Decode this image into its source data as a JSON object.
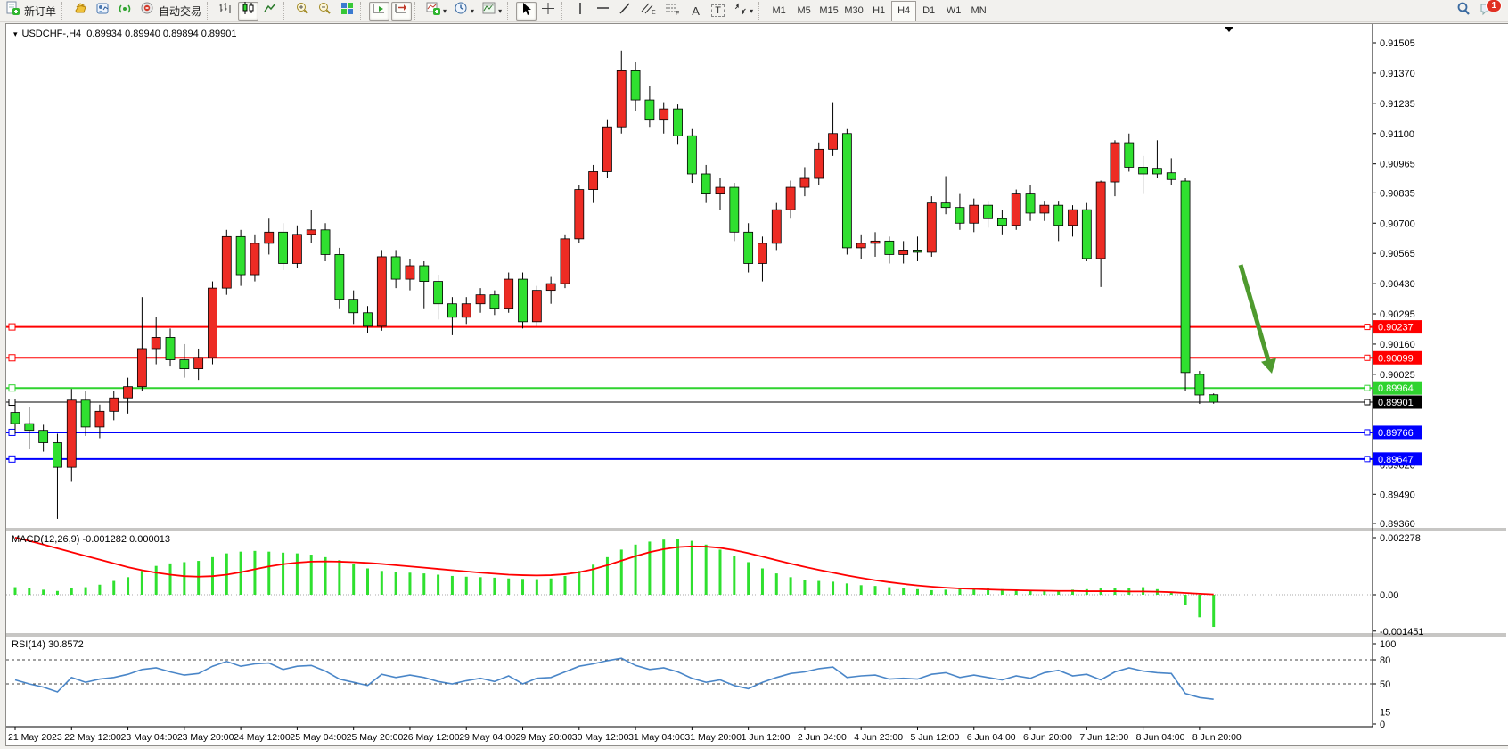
{
  "toolbar": {
    "new_order_label": "新订单",
    "auto_trading_label": "自动交易",
    "text_tool_label": "A",
    "label_tool_label": "T",
    "notification_count": "1",
    "timeframes": [
      "M1",
      "M5",
      "M15",
      "M30",
      "H1",
      "H4",
      "D1",
      "W1",
      "MN"
    ],
    "active_timeframe": "H4"
  },
  "chart": {
    "title": "USDCHF-,H4",
    "ohlc_display": "0.89934 0.89940 0.89894 0.89901",
    "macd_label": "MACD(12,26,9) -0.001282 0.000013",
    "rsi_label": "RSI(14) 30.8572",
    "accent_colors": {
      "bull_candle": "#ed2c24",
      "bear_candle": "#30e030",
      "resistance_line": "#ff0000",
      "support_line_green": "#2fd32f",
      "support_line_blue": "#0000ff",
      "current_price_line": "#000000",
      "macd_histogram": "#2fe02f",
      "macd_signal": "#ff0000",
      "rsi_line": "#4a86c8",
      "annotation_arrow": "#4e9a2e"
    }
  },
  "chart_data": {
    "type": "candlestick",
    "symbol": "USDCHF-",
    "timeframe": "H4",
    "current_price": 0.89901,
    "price_ticks": [
      "0.91505",
      "0.91370",
      "0.91235",
      "0.91100",
      "0.90965",
      "0.90835",
      "0.90700",
      "0.90565",
      "0.90430",
      "0.90295",
      "0.90160",
      "0.90025",
      "0.89890",
      "0.89755",
      "0.89620",
      "0.89490",
      "0.89360"
    ],
    "x_labels": [
      "21 May 2023",
      "22 May 12:00",
      "23 May 04:00",
      "23 May 20:00",
      "24 May 12:00",
      "25 May 04:00",
      "25 May 20:00",
      "26 May 12:00",
      "29 May 04:00",
      "29 May 20:00",
      "30 May 12:00",
      "31 May 04:00",
      "31 May 20:00",
      "1 Jun 12:00",
      "2 Jun 04:00",
      "4 Jun 23:00",
      "5 Jun 12:00",
      "6 Jun 04:00",
      "6 Jun 20:00",
      "7 Jun 12:00",
      "8 Jun 04:00",
      "8 Jun 20:00"
    ],
    "hlines": [
      {
        "price": 0.90237,
        "label": "0.90237",
        "color": "#ff0000",
        "width": 2
      },
      {
        "price": 0.90099,
        "label": "0.90099",
        "color": "#ff0000",
        "width": 2
      },
      {
        "price": 0.89964,
        "label": "0.89964",
        "color": "#2fd32f",
        "width": 2
      },
      {
        "price": 0.89901,
        "label": "0.89901",
        "color": "#000000",
        "width": 1
      },
      {
        "price": 0.89766,
        "label": "0.89766",
        "color": "#0000ff",
        "width": 2
      },
      {
        "price": 0.89647,
        "label": "0.89647",
        "color": "#0000ff",
        "width": 2
      }
    ],
    "candles": [
      [
        0.89855,
        0.8989,
        0.8976,
        0.89805
      ],
      [
        0.89805,
        0.8988,
        0.8969,
        0.89775
      ],
      [
        0.89775,
        0.898,
        0.8968,
        0.8972
      ],
      [
        0.8972,
        0.8976,
        0.8938,
        0.8961
      ],
      [
        0.8961,
        0.8996,
        0.89545,
        0.8991
      ],
      [
        0.8991,
        0.8995,
        0.8975,
        0.8979
      ],
      [
        0.8979,
        0.8989,
        0.8974,
        0.8986
      ],
      [
        0.8986,
        0.8995,
        0.8982,
        0.8992
      ],
      [
        0.8992,
        0.9001,
        0.8985,
        0.8997
      ],
      [
        0.8997,
        0.9037,
        0.8995,
        0.9014
      ],
      [
        0.9014,
        0.9028,
        0.9007,
        0.9019
      ],
      [
        0.9019,
        0.9023,
        0.9006,
        0.9009
      ],
      [
        0.9009,
        0.9016,
        0.9001,
        0.9005
      ],
      [
        0.9005,
        0.9014,
        0.9,
        0.901
      ],
      [
        0.901,
        0.9044,
        0.9007,
        0.9041
      ],
      [
        0.9041,
        0.9067,
        0.9038,
        0.9064
      ],
      [
        0.9064,
        0.9067,
        0.9042,
        0.9047
      ],
      [
        0.9047,
        0.9065,
        0.9044,
        0.9061
      ],
      [
        0.9061,
        0.9072,
        0.9056,
        0.9066
      ],
      [
        0.9066,
        0.907,
        0.9049,
        0.9052
      ],
      [
        0.9052,
        0.9069,
        0.905,
        0.9065
      ],
      [
        0.9065,
        0.9076,
        0.9061,
        0.9067
      ],
      [
        0.9067,
        0.907,
        0.9053,
        0.9056
      ],
      [
        0.9056,
        0.9059,
        0.9032,
        0.9036
      ],
      [
        0.9036,
        0.904,
        0.9025,
        0.903
      ],
      [
        0.903,
        0.9033,
        0.9021,
        0.9024
      ],
      [
        0.9024,
        0.9058,
        0.9022,
        0.9055
      ],
      [
        0.9055,
        0.9058,
        0.9041,
        0.9045
      ],
      [
        0.9045,
        0.9054,
        0.904,
        0.9051
      ],
      [
        0.9051,
        0.9053,
        0.9032,
        0.9044
      ],
      [
        0.9044,
        0.9047,
        0.9027,
        0.9034
      ],
      [
        0.9034,
        0.9037,
        0.902,
        0.9028
      ],
      [
        0.9028,
        0.9037,
        0.9025,
        0.9034
      ],
      [
        0.9034,
        0.9041,
        0.903,
        0.9038
      ],
      [
        0.9038,
        0.904,
        0.9029,
        0.9032
      ],
      [
        0.9032,
        0.9048,
        0.903,
        0.9045
      ],
      [
        0.9045,
        0.9048,
        0.9023,
        0.9026
      ],
      [
        0.9026,
        0.9042,
        0.9024,
        0.904
      ],
      [
        0.904,
        0.9046,
        0.9034,
        0.9043
      ],
      [
        0.9043,
        0.9065,
        0.9041,
        0.9063
      ],
      [
        0.9063,
        0.9087,
        0.9061,
        0.9085
      ],
      [
        0.9085,
        0.9096,
        0.9079,
        0.9093
      ],
      [
        0.9093,
        0.9116,
        0.909,
        0.9113
      ],
      [
        0.9113,
        0.9147,
        0.911,
        0.9138
      ],
      [
        0.9138,
        0.9142,
        0.912,
        0.9125
      ],
      [
        0.9125,
        0.9131,
        0.9113,
        0.9116
      ],
      [
        0.9116,
        0.9124,
        0.911,
        0.9121
      ],
      [
        0.9121,
        0.9123,
        0.9105,
        0.9109
      ],
      [
        0.9109,
        0.9112,
        0.9088,
        0.9092
      ],
      [
        0.9092,
        0.9096,
        0.9079,
        0.9083
      ],
      [
        0.9083,
        0.909,
        0.9076,
        0.9086
      ],
      [
        0.9086,
        0.9088,
        0.9062,
        0.9066
      ],
      [
        0.9066,
        0.907,
        0.9048,
        0.9052
      ],
      [
        0.9052,
        0.9064,
        0.9044,
        0.9061
      ],
      [
        0.9061,
        0.9079,
        0.9058,
        0.9076
      ],
      [
        0.9076,
        0.9089,
        0.9072,
        0.9086
      ],
      [
        0.9086,
        0.9095,
        0.9082,
        0.909
      ],
      [
        0.909,
        0.9106,
        0.9087,
        0.9103
      ],
      [
        0.9103,
        0.9124,
        0.91,
        0.911
      ],
      [
        0.911,
        0.9112,
        0.9056,
        0.9059
      ],
      [
        0.9059,
        0.9065,
        0.9054,
        0.9061
      ],
      [
        0.9061,
        0.9066,
        0.9055,
        0.9062
      ],
      [
        0.9062,
        0.9064,
        0.9052,
        0.9056
      ],
      [
        0.9056,
        0.9062,
        0.9052,
        0.9058
      ],
      [
        0.9058,
        0.9064,
        0.9053,
        0.9057
      ],
      [
        0.9057,
        0.9082,
        0.9055,
        0.9079
      ],
      [
        0.9079,
        0.9091,
        0.9074,
        0.9077
      ],
      [
        0.9077,
        0.9083,
        0.9067,
        0.907
      ],
      [
        0.907,
        0.9081,
        0.9066,
        0.9078
      ],
      [
        0.9078,
        0.908,
        0.9068,
        0.9072
      ],
      [
        0.9072,
        0.9076,
        0.9065,
        0.9069
      ],
      [
        0.9069,
        0.9085,
        0.9067,
        0.9083
      ],
      [
        0.9083,
        0.9087,
        0.9071,
        0.90745
      ],
      [
        0.90745,
        0.908,
        0.9071,
        0.9078
      ],
      [
        0.9078,
        0.908,
        0.9062,
        0.9069
      ],
      [
        0.9069,
        0.9078,
        0.9064,
        0.9076
      ],
      [
        0.9076,
        0.9079,
        0.9053,
        0.90542
      ],
      [
        0.90542,
        0.9089,
        0.90415,
        0.90884
      ],
      [
        0.90884,
        0.9107,
        0.9082,
        0.91059
      ],
      [
        0.91059,
        0.911,
        0.9093,
        0.9095
      ],
      [
        0.9095,
        0.91,
        0.9083,
        0.9092
      ],
      [
        0.90945,
        0.9107,
        0.909,
        0.9092
      ],
      [
        0.90925,
        0.9099,
        0.9087,
        0.90895
      ],
      [
        0.90888,
        0.909,
        0.8995,
        0.90033
      ],
      [
        0.90025,
        0.9004,
        0.89893,
        0.89933
      ],
      [
        0.89934,
        0.8994,
        0.89894,
        0.89901
      ]
    ],
    "macd": {
      "ticks": [
        {
          "value": 0.002278,
          "label": "0.002278"
        },
        {
          "value": 0,
          "label": "0.00"
        },
        {
          "value": -0.001451,
          "label": "-0.001451"
        }
      ],
      "histogram": [
        0.0003,
        0.00025,
        0.0002,
        0.00015,
        0.00025,
        0.0003,
        0.0004,
        0.00055,
        0.0007,
        0.00095,
        0.00115,
        0.00125,
        0.0013,
        0.00135,
        0.0015,
        0.00165,
        0.00172,
        0.00175,
        0.00172,
        0.00168,
        0.00165,
        0.0016,
        0.0015,
        0.00138,
        0.00122,
        0.00105,
        0.00095,
        0.0009,
        0.00088,
        0.00085,
        0.0008,
        0.00075,
        0.00072,
        0.0007,
        0.00068,
        0.00065,
        0.00063,
        0.00062,
        0.00065,
        0.00075,
        0.00095,
        0.0012,
        0.0015,
        0.0018,
        0.002,
        0.00212,
        0.0022,
        0.00222,
        0.00215,
        0.002,
        0.0018,
        0.00155,
        0.0013,
        0.00105,
        0.00085,
        0.0007,
        0.0006,
        0.00055,
        0.00052,
        0.00045,
        0.00038,
        0.00035,
        0.0003,
        0.00028,
        0.00022,
        0.00018,
        0.0002,
        0.00024,
        0.00026,
        0.00025,
        0.00022,
        0.00018,
        0.00015,
        0.00014,
        0.00016,
        0.0002,
        0.00022,
        0.00025,
        0.00026,
        0.00028,
        0.0003,
        0.00022,
        0.00012,
        -0.0004,
        -0.0009,
        -0.001282
      ],
      "signal": [
        0.00228,
        0.00215,
        0.002,
        0.00185,
        0.0017,
        0.00155,
        0.0014,
        0.00125,
        0.0011,
        0.00098,
        0.00088,
        0.0008,
        0.00074,
        0.00072,
        0.00074,
        0.0008,
        0.0009,
        0.00102,
        0.00113,
        0.00122,
        0.00128,
        0.00132,
        0.00133,
        0.00132,
        0.0013,
        0.00127,
        0.00123,
        0.00118,
        0.00113,
        0.00108,
        0.00103,
        0.00098,
        0.00093,
        0.00088,
        0.00084,
        0.0008,
        0.00078,
        0.00077,
        0.00078,
        0.00082,
        0.0009,
        0.00102,
        0.00118,
        0.00136,
        0.00154,
        0.0017,
        0.00182,
        0.0019,
        0.00193,
        0.00192,
        0.00187,
        0.00178,
        0.00166,
        0.00152,
        0.00138,
        0.00124,
        0.00111,
        0.00099,
        0.00088,
        0.00077,
        0.00067,
        0.00058,
        0.0005,
        0.00043,
        0.00037,
        0.00032,
        0.00028,
        0.00025,
        0.00023,
        0.00021,
        0.00019,
        0.00018,
        0.00017,
        0.00016,
        0.00015,
        0.00015,
        0.00014,
        0.00014,
        0.00014,
        0.00013,
        0.00013,
        0.00012,
        0.0001,
        7e-05,
        4e-05,
        1.3e-05
      ]
    },
    "rsi": {
      "ticks": [
        {
          "value": 100,
          "label": "100"
        },
        {
          "value": 80,
          "label": "80"
        },
        {
          "value": 50,
          "label": "50"
        },
        {
          "value": 15,
          "label": "15"
        },
        {
          "value": 0,
          "label": "0"
        }
      ],
      "dashed_levels": [
        80,
        50,
        15
      ],
      "values": [
        55,
        50,
        46,
        40,
        58,
        52,
        56,
        58,
        62,
        68,
        70,
        65,
        61,
        63,
        72,
        78,
        72,
        75,
        76,
        68,
        72,
        73,
        66,
        56,
        52,
        48,
        62,
        58,
        61,
        58,
        53,
        50,
        54,
        57,
        53,
        60,
        50,
        57,
        58,
        65,
        72,
        75,
        79,
        82,
        73,
        68,
        70,
        65,
        57,
        52,
        55,
        48,
        44,
        52,
        58,
        63,
        65,
        69,
        71,
        58,
        60,
        61,
        56,
        57,
        56,
        62,
        64,
        58,
        61,
        58,
        55,
        60,
        57,
        64,
        67,
        60,
        62,
        55,
        65,
        70,
        66,
        64,
        63,
        38,
        33,
        30.86
      ]
    }
  }
}
